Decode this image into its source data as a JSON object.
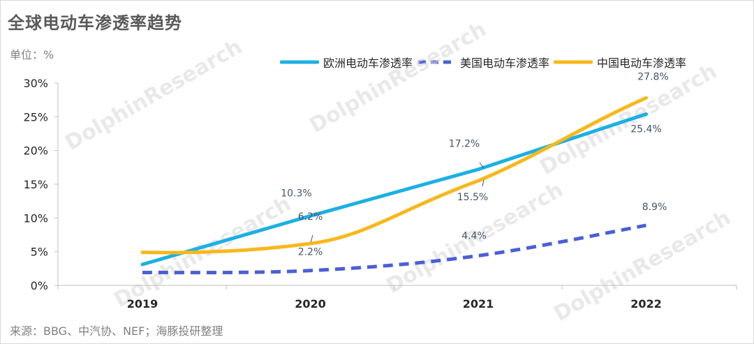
{
  "header": {
    "title": "全球电动车渗透率趋势",
    "unit_label": "单位：%"
  },
  "footer": {
    "source": "来源：BBG、中汽协、NEF；海豚投研整理"
  },
  "watermark": {
    "brand": "DolphinResearch",
    "brand_cn": "海豚投研"
  },
  "colors": {
    "europe": "#1cb0e4",
    "usa": "#4a5fd6",
    "china": "#f7b81c",
    "label_text": "#44546a",
    "axis": "#bfbfbf"
  },
  "chart_data": {
    "type": "line",
    "categories": [
      "2019",
      "2020",
      "2021",
      "2022"
    ],
    "ylim": [
      0,
      30
    ],
    "yticks": [
      "0%",
      "5%",
      "10%",
      "15%",
      "20%",
      "25%",
      "30%"
    ],
    "legend_position": "top-right",
    "grid": false,
    "series": [
      {
        "key": "europe",
        "name": "欧洲电动车渗透率",
        "style": "solid",
        "values": [
          3.1,
          10.3,
          17.2,
          25.4
        ],
        "labels": [
          "",
          "10.3%",
          "17.2%",
          "25.4%"
        ]
      },
      {
        "key": "usa",
        "name": "美国电动车渗透率",
        "style": "dashed",
        "values": [
          1.9,
          2.2,
          4.4,
          8.9
        ],
        "labels": [
          "",
          "2.2%",
          "4.4%",
          "8.9%"
        ]
      },
      {
        "key": "china",
        "name": "中国电动车渗透率",
        "style": "solid-smooth",
        "values": [
          4.9,
          6.2,
          15.5,
          27.8
        ],
        "labels": [
          "",
          "6.2%",
          "15.5%",
          "27.8%"
        ]
      }
    ]
  }
}
